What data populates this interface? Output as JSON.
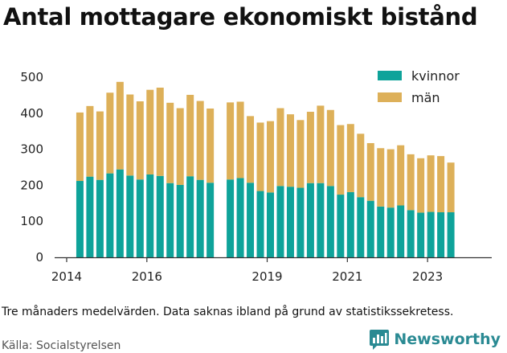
{
  "title": "Antal mottagare ekonomiskt bistånd",
  "note": "Tre månaders medelvärden. Data saknas ibland på grund av statistikssekretess.",
  "source": "Källa: Socialstyrelsen",
  "brand": {
    "name": "Newsworthy",
    "icon": "newsworthy-logo-icon"
  },
  "colors": {
    "kvinnor": "#0ea39a",
    "man": "#ddb059",
    "axis": "#333333",
    "grid": "#eeeeee"
  },
  "chart_data": {
    "type": "bar",
    "stacked": true,
    "xlim": [
      2013.7,
      2024.6
    ],
    "ylim": [
      0,
      500
    ],
    "yticks": [
      0,
      100,
      200,
      300,
      400,
      500
    ],
    "xticks": [
      {
        "value": 2014,
        "label": "2014"
      },
      {
        "value": 2016,
        "label": "2016"
      },
      {
        "value": 2019,
        "label": "2019"
      },
      {
        "value": 2021,
        "label": "2021"
      },
      {
        "value": 2023,
        "label": "2023"
      }
    ],
    "legend": {
      "position": "top-right",
      "items": [
        "kvinnor",
        "män"
      ]
    },
    "grid": false,
    "x": [
      2014.33,
      2014.58,
      2014.83,
      2015.08,
      2015.33,
      2015.58,
      2015.83,
      2016.08,
      2016.33,
      2016.58,
      2016.83,
      2017.08,
      2017.33,
      2017.58,
      2018.08,
      2018.33,
      2018.58,
      2018.83,
      2019.08,
      2019.33,
      2019.58,
      2019.83,
      2020.08,
      2020.33,
      2020.58,
      2020.83,
      2021.08,
      2021.33,
      2021.58,
      2021.83,
      2022.08,
      2022.33,
      2022.58,
      2022.83,
      2023.08,
      2023.33,
      2023.58
    ],
    "series": [
      {
        "name": "kvinnor",
        "values": [
          212,
          224,
          215,
          233,
          244,
          227,
          216,
          230,
          226,
          206,
          201,
          225,
          215,
          207,
          216,
          220,
          207,
          184,
          180,
          198,
          196,
          193,
          206,
          206,
          198,
          174,
          181,
          167,
          157,
          141,
          138,
          144,
          131,
          124,
          126,
          125,
          125
        ]
      },
      {
        "name": "män",
        "values": [
          190,
          196,
          190,
          224,
          243,
          225,
          217,
          235,
          245,
          223,
          213,
          226,
          219,
          206,
          214,
          212,
          185,
          190,
          198,
          216,
          201,
          188,
          198,
          215,
          211,
          193,
          189,
          176,
          160,
          162,
          162,
          167,
          155,
          151,
          157,
          156,
          138
        ]
      }
    ]
  }
}
